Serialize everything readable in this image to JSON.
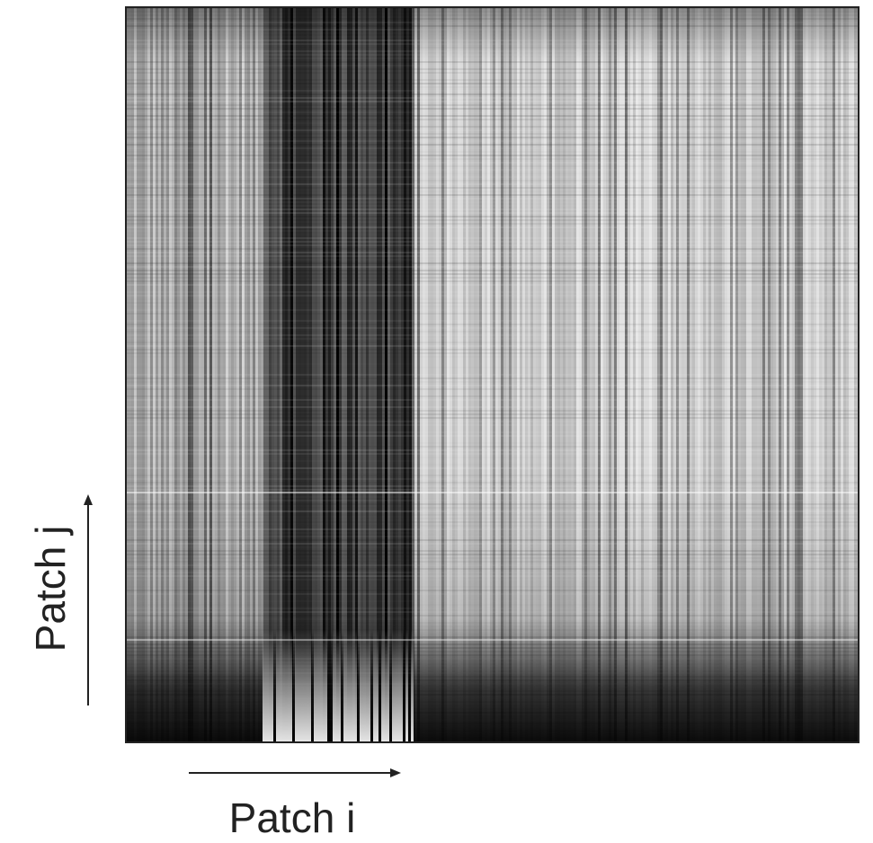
{
  "figure": {
    "x_label": "Patch i",
    "y_label": "Patch j"
  }
}
